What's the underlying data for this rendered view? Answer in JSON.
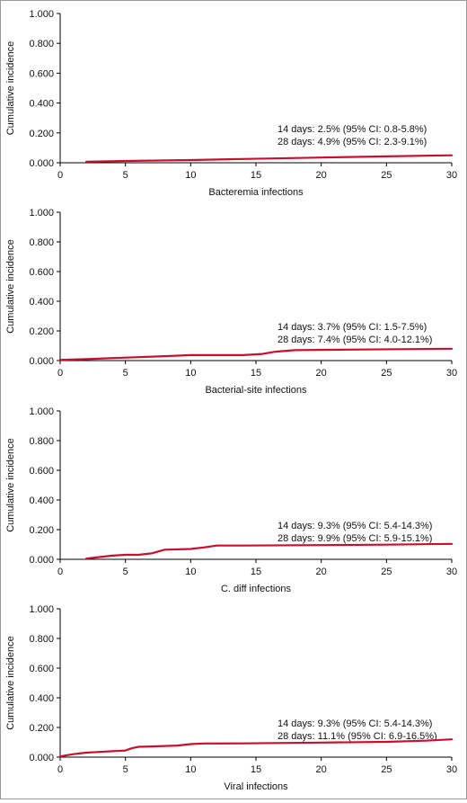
{
  "chart_data": [
    {
      "type": "line",
      "title": "",
      "xlabel": "Bacteremia infections",
      "ylabel": "Cumulative incidence",
      "xlim": [
        0,
        30
      ],
      "ylim": [
        0,
        1.0
      ],
      "xticks": [
        "0",
        "5",
        "10",
        "15",
        "20",
        "25",
        "30"
      ],
      "yticks": [
        "0.000",
        "0.200",
        "0.400",
        "0.600",
        "0.800",
        "1.000"
      ],
      "annotations": [
        "14 days: 2.5% (95% CI: 0.8-5.8%)",
        "28 days: 4.9% (95% CI: 2.3-9.1%)"
      ],
      "series": [
        {
          "x": [
            2,
            5,
            10,
            14,
            20,
            25,
            30
          ],
          "y": [
            0.007,
            0.012,
            0.018,
            0.025,
            0.035,
            0.043,
            0.05
          ]
        }
      ]
    },
    {
      "type": "line",
      "title": "",
      "xlabel": "Bacterial-site infections",
      "ylabel": "Cumulative incidence",
      "xlim": [
        0,
        30
      ],
      "ylim": [
        0,
        1.0
      ],
      "xticks": [
        "0",
        "5",
        "10",
        "15",
        "20",
        "25",
        "30"
      ],
      "yticks": [
        "0.000",
        "0.200",
        "0.400",
        "0.600",
        "0.800",
        "1.000"
      ],
      "annotations": [
        "14 days: 3.7% (95% CI: 1.5-7.5%)",
        "28 days: 7.4% (95% CI: 4.0-12.1%)"
      ],
      "series": [
        {
          "x": [
            0,
            2,
            5,
            8,
            10,
            14,
            15.5,
            16.5,
            18,
            22,
            26,
            30
          ],
          "y": [
            0.005,
            0.01,
            0.02,
            0.03,
            0.037,
            0.037,
            0.045,
            0.06,
            0.07,
            0.074,
            0.077,
            0.08
          ]
        }
      ]
    },
    {
      "type": "line",
      "title": "",
      "xlabel": "C. diff infections",
      "ylabel": "Cumulative incidence",
      "xlim": [
        0,
        30
      ],
      "ylim": [
        0,
        1.0
      ],
      "xticks": [
        "0",
        "5",
        "10",
        "15",
        "20",
        "25",
        "30"
      ],
      "yticks": [
        "0.000",
        "0.200",
        "0.400",
        "0.600",
        "0.800",
        "1.000"
      ],
      "annotations": [
        "14 days: 9.3% (95% CI: 5.4-14.3%)",
        "28 days: 9.9% (95% CI: 5.9-15.1%)"
      ],
      "series": [
        {
          "x": [
            2,
            3,
            4,
            5,
            6,
            7,
            8,
            10,
            11,
            12,
            14,
            20,
            25,
            30
          ],
          "y": [
            0.005,
            0.015,
            0.025,
            0.03,
            0.03,
            0.04,
            0.065,
            0.07,
            0.08,
            0.093,
            0.093,
            0.096,
            0.099,
            0.104
          ]
        }
      ]
    },
    {
      "type": "line",
      "title": "",
      "xlabel": "Viral infections",
      "ylabel": "Cumulative incidence",
      "xlim": [
        0,
        30
      ],
      "ylim": [
        0,
        1.0
      ],
      "xticks": [
        "0",
        "5",
        "10",
        "15",
        "20",
        "25",
        "30"
      ],
      "yticks": [
        "0.000",
        "0.200",
        "0.400",
        "0.600",
        "0.800",
        "1.000"
      ],
      "annotations": [
        "14 days: 9.3% (95% CI: 5.4-14.3%)",
        "28 days: 11.1% (95% CI: 6.9-16.5%)"
      ],
      "series": [
        {
          "x": [
            0,
            1,
            2,
            3,
            4,
            5,
            5.5,
            6,
            7,
            9,
            10,
            11,
            14,
            20,
            25,
            28,
            30
          ],
          "y": [
            0.005,
            0.02,
            0.03,
            0.035,
            0.04,
            0.045,
            0.06,
            0.07,
            0.072,
            0.078,
            0.088,
            0.092,
            0.093,
            0.098,
            0.103,
            0.111,
            0.12
          ]
        }
      ]
    }
  ],
  "line_color": "#c8102e"
}
